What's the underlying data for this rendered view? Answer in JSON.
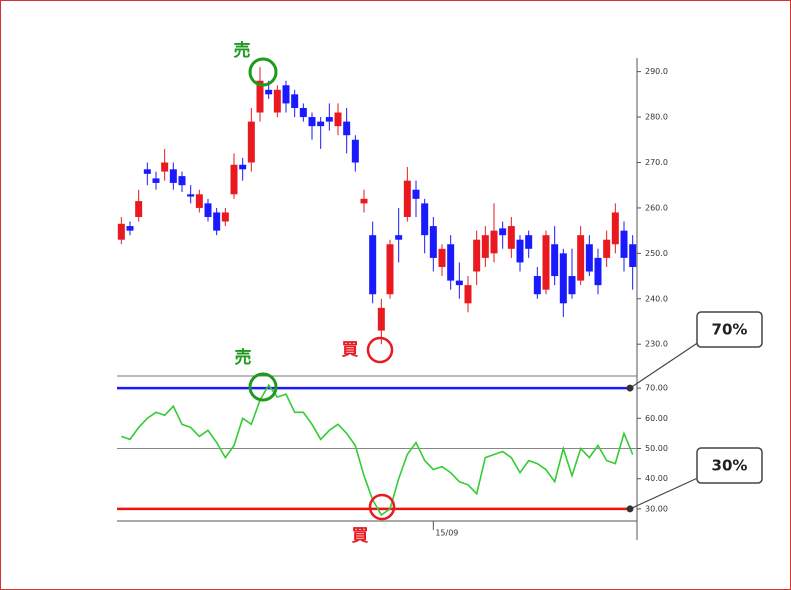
{
  "chart_data": [
    {
      "type": "candlestick",
      "up_color": "#e8191f",
      "down_color": "#1a1aff",
      "open": [
        253,
        256,
        258,
        268.5,
        266.5,
        268,
        268.5,
        267,
        263,
        260,
        261,
        259,
        257,
        263,
        269.5,
        270,
        281,
        286,
        281,
        287,
        285,
        282,
        280,
        279,
        280,
        278,
        279,
        275,
        261,
        254,
        233,
        241,
        254,
        258,
        264,
        261,
        256,
        247,
        252,
        244,
        239,
        246,
        249,
        250,
        255.5,
        251,
        253,
        254,
        245,
        242,
        252,
        250,
        245,
        244,
        252,
        249,
        249,
        252,
        255,
        252
      ],
      "high": [
        258,
        257,
        264,
        270,
        268,
        273,
        270,
        268,
        265,
        264,
        262,
        260,
        260,
        272,
        271,
        282,
        291,
        288,
        287,
        288,
        286,
        283,
        281,
        280,
        283,
        283,
        282,
        276,
        264,
        257,
        240,
        253,
        260,
        269,
        266,
        262,
        258,
        252,
        254,
        248,
        245,
        255,
        256,
        261,
        257,
        258,
        254,
        255,
        247,
        255,
        256,
        251,
        251,
        256,
        254,
        251,
        255,
        261,
        257,
        254
      ],
      "low": [
        252,
        254,
        257,
        265,
        264,
        266,
        264,
        263.5,
        261,
        259,
        257,
        254,
        256,
        262,
        266,
        268,
        279,
        284,
        280,
        281,
        280,
        279,
        275,
        273,
        277,
        276,
        272,
        268,
        259,
        239,
        230,
        240,
        248,
        257,
        258,
        250,
        246,
        245,
        242,
        240,
        237,
        243,
        247,
        248,
        251,
        249,
        246,
        249,
        240,
        241,
        243,
        236,
        240,
        243,
        245,
        241,
        247,
        250,
        246,
        242
      ],
      "close": [
        256.5,
        255,
        261.5,
        267.5,
        265.5,
        270,
        265.5,
        265,
        262.5,
        263,
        258,
        255,
        259,
        269.5,
        268.5,
        279,
        288,
        285,
        286,
        283,
        282,
        280,
        278,
        278,
        279,
        281,
        276,
        270,
        262,
        241,
        238,
        252,
        253,
        266,
        262,
        254,
        249,
        251,
        244,
        243,
        243,
        253,
        254,
        255,
        254,
        256,
        248,
        251,
        241,
        254,
        245,
        239,
        241,
        254,
        246,
        243,
        253,
        259,
        249,
        247
      ],
      "ylim": [
        223,
        293
      ],
      "yticks": [
        {
          "value": 230,
          "label": "230.0"
        },
        {
          "value": 240,
          "label": "240.0"
        },
        {
          "value": 250,
          "label": "250.0"
        },
        {
          "value": 260,
          "label": "260.0"
        },
        {
          "value": 270,
          "label": "270.0"
        },
        {
          "value": 280,
          "label": "280.0"
        },
        {
          "value": 290,
          "label": "290.0"
        }
      ],
      "sell_label": "売",
      "buy_label": "買"
    },
    {
      "type": "line",
      "color": "#33cc33",
      "categories": [
        null,
        null,
        null,
        null,
        null,
        null,
        null,
        null,
        null,
        null,
        null,
        null,
        null,
        null,
        null,
        null,
        null,
        null,
        null,
        null,
        null,
        null,
        null,
        null,
        null,
        null,
        null,
        null,
        null,
        null,
        null,
        null,
        null,
        null,
        null,
        null,
        "15/09",
        null,
        null,
        null,
        null,
        null,
        null,
        null,
        null,
        null,
        null,
        null,
        null,
        null,
        null,
        null,
        null,
        null,
        null,
        null,
        null,
        null,
        null,
        null
      ],
      "values": [
        54,
        53,
        57,
        60,
        62,
        61,
        64,
        58,
        57,
        54,
        56,
        52,
        47,
        51,
        60,
        58,
        66,
        71,
        67,
        68,
        62,
        62,
        58,
        53,
        56,
        58,
        55,
        51,
        41,
        33,
        28,
        30,
        40,
        48,
        52,
        46,
        43,
        44,
        42,
        39,
        38,
        35,
        47,
        48,
        49,
        47,
        42,
        46,
        45,
        43,
        39,
        50,
        41,
        50,
        47,
        51,
        46,
        45,
        55,
        48
      ],
      "ylim": [
        26,
        74
      ],
      "yticks": [
        {
          "value": 30,
          "label": "30.00"
        },
        {
          "value": 40,
          "label": "40.00"
        },
        {
          "value": 50,
          "label": "50.00"
        },
        {
          "value": 60,
          "label": "60.00"
        },
        {
          "value": 70,
          "label": "70.00"
        }
      ],
      "gridlines": [
        50
      ],
      "reference_lines": [
        {
          "value": 70,
          "label": "70%",
          "color": "#1a1aff"
        },
        {
          "value": 30,
          "label": "30%",
          "color": "#ee1111"
        }
      ],
      "sell_label": "売",
      "buy_label": "買"
    }
  ]
}
